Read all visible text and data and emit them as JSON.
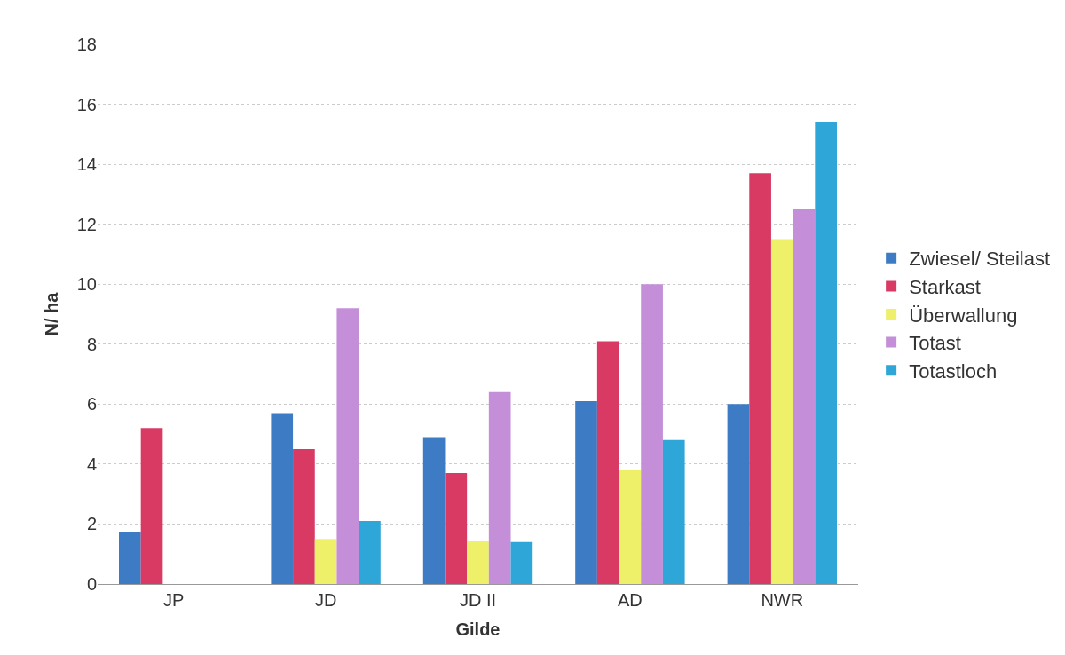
{
  "chart_data": {
    "type": "bar",
    "xlabel": "Gilde",
    "ylabel": "N/ ha",
    "categories": [
      "JP",
      "JD",
      "JD II",
      "AD",
      "NWR"
    ],
    "series": [
      {
        "name": "Zwiesel/ Steilast",
        "color": "#3d7cc4",
        "values": [
          1.75,
          5.7,
          4.9,
          6.1,
          6.0
        ]
      },
      {
        "name": "Starkast",
        "color": "#d83a64",
        "values": [
          5.2,
          4.5,
          3.7,
          8.1,
          13.7
        ]
      },
      {
        "name": "Überwallung",
        "color": "#eef06a",
        "values": [
          null,
          1.5,
          1.45,
          3.8,
          11.5
        ]
      },
      {
        "name": "Totast",
        "color": "#c48ed8",
        "values": [
          null,
          9.2,
          6.4,
          10.0,
          12.5
        ]
      },
      {
        "name": "Totastloch",
        "color": "#2ea6d8",
        "values": [
          null,
          2.1,
          1.4,
          4.8,
          15.4
        ]
      }
    ],
    "ylim": [
      0,
      18
    ],
    "yticks": [
      0,
      2,
      4,
      6,
      8,
      10,
      12,
      14,
      16,
      18
    ],
    "grid": "y",
    "legend": "right"
  }
}
